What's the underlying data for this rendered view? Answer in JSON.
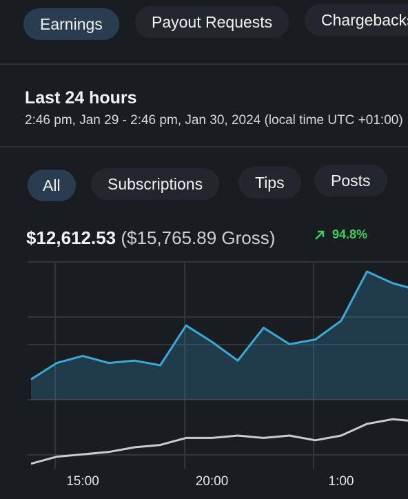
{
  "tabs": [
    "Earnings",
    "Payout Requests",
    "Chargebacks"
  ],
  "period": {
    "title": "Last 24 hours",
    "range": "2:46 pm, Jan 29 - 2:46 pm, Jan 30, 2024 (local time UTC +01:00)"
  },
  "filters": [
    "All",
    "Subscriptions",
    "Tips",
    "Posts"
  ],
  "summary": {
    "net": "$12,612.53",
    "gross": "($15,765.89 Gross)",
    "change": "94.8%"
  },
  "chart_data": {
    "type": "line",
    "categories": [
      null,
      null,
      "15:00",
      null,
      null,
      null,
      null,
      "20:00",
      null,
      null,
      null,
      null,
      "1:00",
      null,
      null,
      null
    ],
    "series": [
      {
        "color": "#3ba9d6",
        "values": [
          44,
          51,
          54,
          51,
          52,
          50,
          67,
          60,
          52,
          66,
          59,
          61,
          69,
          90,
          85,
          82
        ]
      },
      {
        "color": "#c9ccd1",
        "values": [
          8,
          11,
          12,
          13,
          15,
          16,
          19,
          19,
          20,
          19,
          20,
          18,
          20,
          25,
          27,
          26
        ]
      }
    ],
    "ylim": [
      0,
      100
    ]
  }
}
